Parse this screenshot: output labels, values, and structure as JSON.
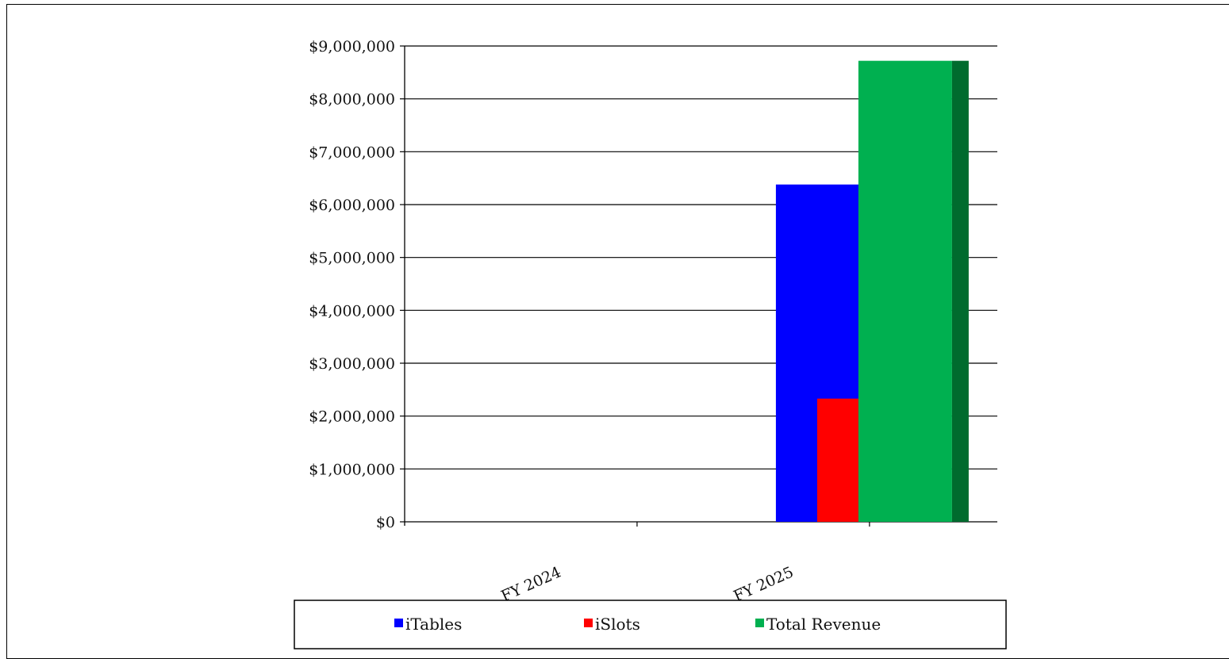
{
  "chart_data": {
    "type": "bar",
    "title": "",
    "xlabel": "",
    "ylabel": "",
    "categories": [
      "FY 2024",
      "FY 2025"
    ],
    "series": [
      {
        "name": "iTables",
        "values": [
          0,
          6380000
        ],
        "color": "#0000ff",
        "side_color": "#0a0ab4"
      },
      {
        "name": "iSlots",
        "values": [
          0,
          2330000
        ],
        "color": "#ff0000",
        "side_color": "#8c0000"
      },
      {
        "name": "Total Revenue",
        "values": [
          0,
          8720000
        ],
        "color": "#00b050",
        "side_color": "#006b2e"
      }
    ],
    "ylim": [
      0,
      9000000
    ],
    "y_ticks": [
      "$0",
      "$1,000,000",
      "$2,000,000",
      "$3,000,000",
      "$4,000,000",
      "$5,000,000",
      "$6,000,000",
      "$7,000,000",
      "$8,000,000",
      "$9,000,000"
    ],
    "grid": true,
    "legend_position": "bottom"
  }
}
